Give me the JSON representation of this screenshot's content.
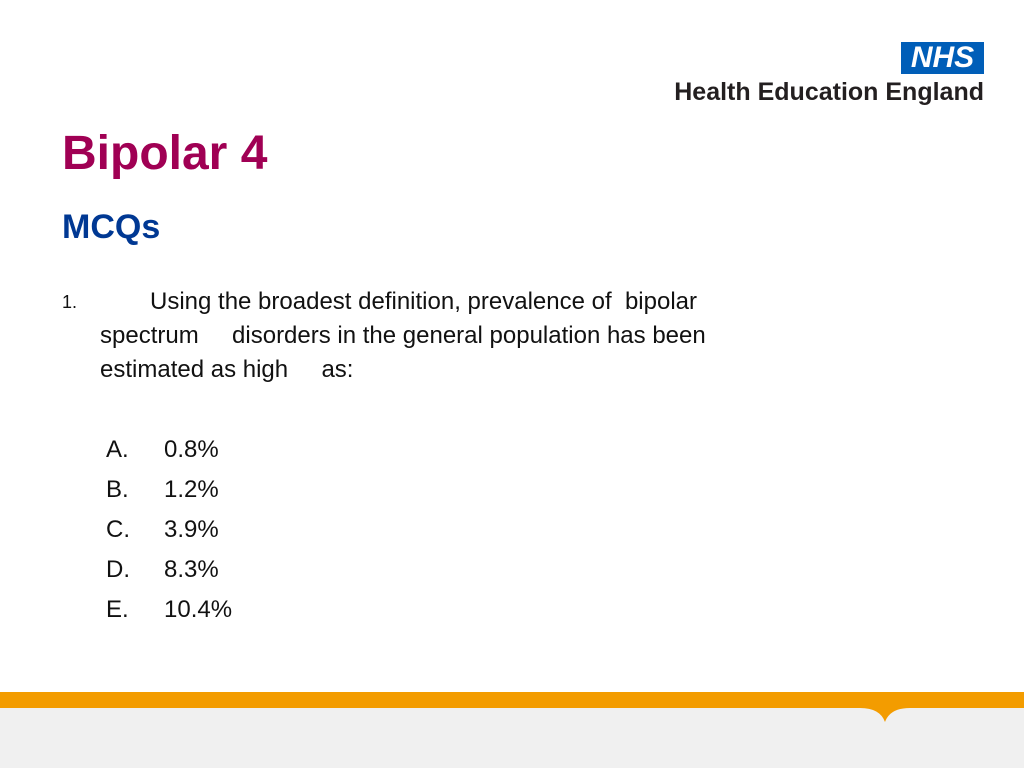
{
  "logo": {
    "badge": "NHS",
    "organisation": "Health Education England"
  },
  "title": "Bipolar 4",
  "subtitle": "MCQs",
  "question": {
    "number": "1.",
    "lines": [
      "Using the broadest definition, prevalence of  bipolar",
      "spectrum     disorders in the general population has been",
      "estimated as high     as:"
    ]
  },
  "options": [
    {
      "letter": "A.",
      "text": "0.8%"
    },
    {
      "letter": "B.",
      "text": "1.2%"
    },
    {
      "letter": "C.",
      "text": "3.9%"
    },
    {
      "letter": "D.",
      "text": "8.3%"
    },
    {
      "letter": "E.",
      "text": "10.4%"
    }
  ]
}
